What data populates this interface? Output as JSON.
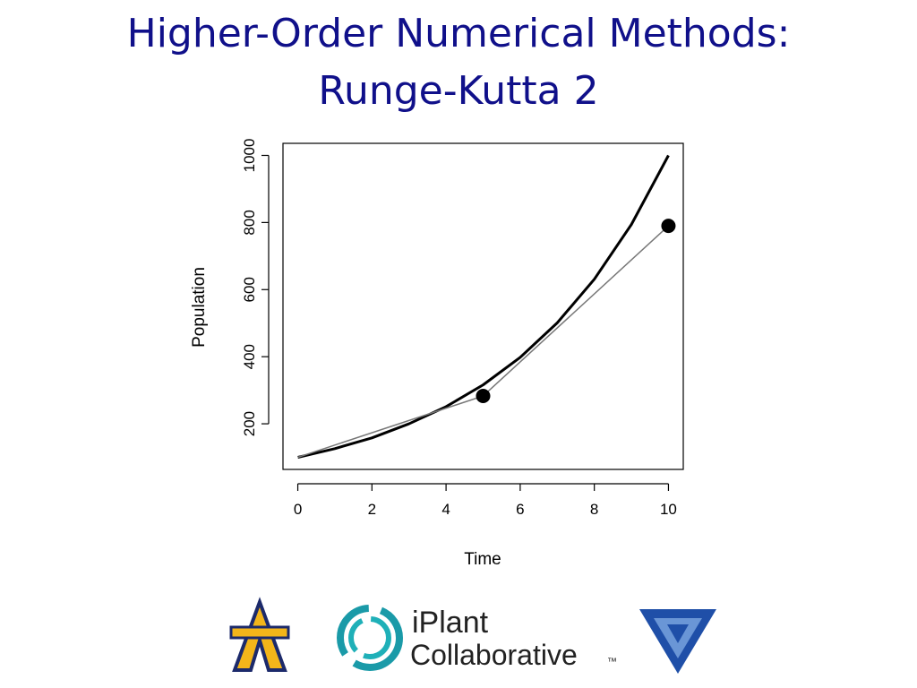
{
  "slide": {
    "title_lines": [
      "Higher-Order Numerical  Methods:",
      "Runge-Kutta 2"
    ]
  },
  "chart_data": {
    "type": "line",
    "x_label": "Time",
    "y_label": "Population",
    "xlim": [
      -0.4,
      10.4
    ],
    "ylim": [
      64,
      1036
    ],
    "xticks": [
      0,
      2,
      4,
      6,
      8,
      10
    ],
    "yticks": [
      200,
      400,
      600,
      800,
      1000
    ],
    "series": [
      {
        "style": "line",
        "color": "#000000",
        "x": [
          0,
          1,
          2,
          3,
          4,
          5,
          6,
          7,
          8,
          9,
          10
        ],
        "values": [
          100,
          126,
          158,
          200,
          251,
          316,
          398,
          501,
          631,
          794,
          1000
        ]
      },
      {
        "style": "line",
        "color": "#777777",
        "x": [
          0,
          5,
          10
        ],
        "values": [
          100,
          283,
          790
        ]
      },
      {
        "style": "points",
        "color": "#000000",
        "x": [
          5,
          10
        ],
        "values": [
          283,
          790
        ]
      }
    ]
  },
  "logos": {
    "iplant_top": "iPlant",
    "iplant_bottom": "Collaborative",
    "tm": "™"
  }
}
